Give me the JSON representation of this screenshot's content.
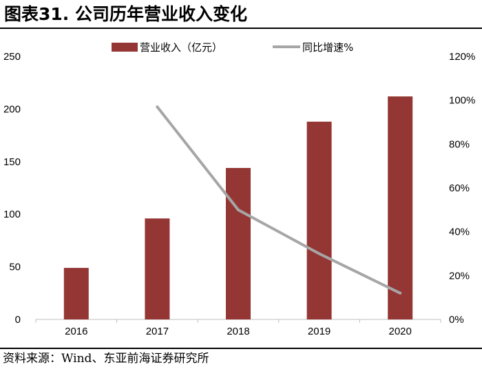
{
  "title": "图表31. 公司历年营业收入变化",
  "source": "资料来源：Wind、东亚前海证券研究所",
  "colors": {
    "bar": "#943634",
    "line": "#A6A6A6",
    "axis": "#BFBFBF"
  },
  "chart_data": {
    "type": "bar+line",
    "categories": [
      "2016",
      "2017",
      "2018",
      "2019",
      "2020"
    ],
    "series": [
      {
        "name": "营业收入（亿元）",
        "type": "bar",
        "axis": "left",
        "values": [
          49,
          96,
          144,
          188,
          212
        ]
      },
      {
        "name": "同比增速%",
        "type": "line",
        "axis": "right",
        "values": [
          null,
          97,
          50,
          30,
          12
        ]
      }
    ],
    "y_left": {
      "min": 0,
      "max": 250,
      "ticks": [
        "0",
        "50",
        "100",
        "150",
        "200",
        "250"
      ]
    },
    "y_right": {
      "min": 0,
      "max": 120,
      "ticks": [
        "0%",
        "20%",
        "40%",
        "60%",
        "80%",
        "100%",
        "120%"
      ]
    },
    "legend_position": "top"
  }
}
